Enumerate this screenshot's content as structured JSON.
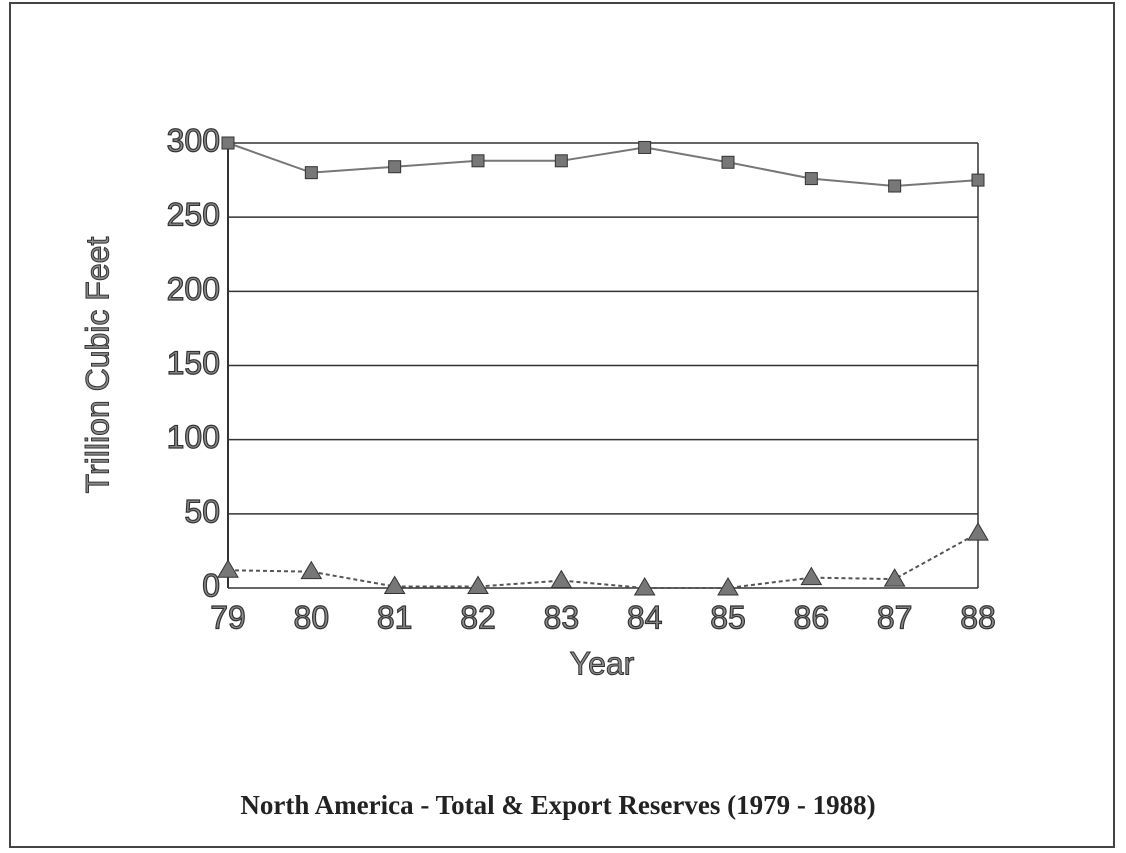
{
  "chart_data": {
    "type": "line",
    "title": "North America - Total & Export Reserves (1979 - 1988)",
    "xlabel": "Year",
    "ylabel": "Trillion Cubic Feet",
    "categories": [
      "79",
      "80",
      "81",
      "82",
      "83",
      "84",
      "85",
      "86",
      "87",
      "88"
    ],
    "series": [
      {
        "color": "#777777",
        "marker": "square",
        "dashed": false,
        "values": [
          300,
          280,
          284,
          288,
          288,
          297,
          287,
          276,
          271,
          275
        ]
      },
      {
        "color": "#777777",
        "marker": "triangle",
        "dashed": true,
        "values": [
          12,
          11,
          1,
          1,
          5,
          0,
          0,
          7,
          6,
          37
        ]
      }
    ],
    "ylim": [
      0,
      300
    ],
    "yticks": [
      0,
      50,
      100,
      150,
      200,
      250,
      300
    ],
    "grid": true
  }
}
